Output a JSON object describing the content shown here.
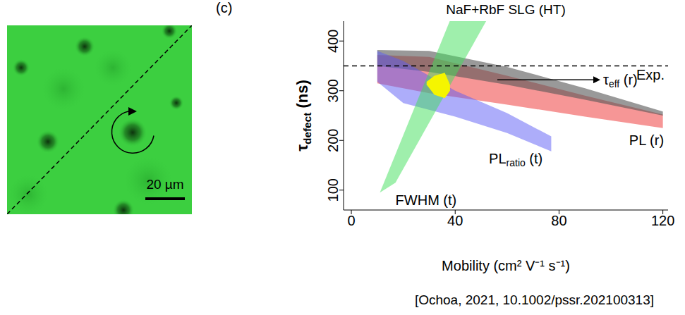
{
  "panel_label": "(c)",
  "citation": "[Ochoa, 2021, 10.1002/pssr.202100313]",
  "image": {
    "scale_bar": "20 µm"
  },
  "chart_data": {
    "type": "area",
    "title": "NaF+RbF SLG (HT)",
    "x_label": "Mobility (cm² V⁻¹ s⁻¹)",
    "y_label": {
      "text": "τ",
      "sub": "defect",
      "suffix": " (ns)"
    },
    "xlim": [
      -3,
      122
    ],
    "ylim": [
      60,
      440
    ],
    "xticks": [
      0,
      40,
      80,
      120
    ],
    "yticks": [
      100,
      200,
      300,
      400
    ],
    "grid": false,
    "reference_lines": [
      {
        "y": 350,
        "label": "Exp.",
        "line_style": "dashed"
      }
    ],
    "series": [
      {
        "label": {
          "text": "PL (r)"
        },
        "color": "#f47c7c",
        "x": [
          10,
          30,
          60,
          90,
          120
        ],
        "lower": [
          315,
          295,
          272,
          248,
          225
        ],
        "upper": [
          372,
          368,
          330,
          290,
          252
        ],
        "label_x": 107,
        "label_y": 200
      },
      {
        "label": {
          "text": "τ",
          "sub": "eff",
          "suffix": " (r)"
        },
        "color": "#555555",
        "x": [
          10,
          30,
          60,
          90,
          120
        ],
        "lower": [
          350,
          338,
          312,
          282,
          250
        ],
        "upper": [
          382,
          380,
          348,
          305,
          258
        ],
        "label_x": 97,
        "label_y": 322,
        "marker": "arrow"
      },
      {
        "label": {
          "text": "PL",
          "sub": "ratio",
          "suffix": " (t)"
        },
        "color": "#5b5bf5",
        "x": [
          10,
          20,
          40,
          60,
          77
        ],
        "lower": [
          318,
          275,
          248,
          215,
          178
        ],
        "upper": [
          380,
          360,
          300,
          255,
          208
        ],
        "label_x": 53,
        "label_y": 163
      },
      {
        "label": {
          "text": "FWHM (t)"
        },
        "color": "#3fe05a",
        "x": [
          11,
          17,
          40,
          56
        ],
        "lower": [
          95,
          115,
          329,
          478
        ],
        "upper": [
          95,
          172,
          467,
          478
        ],
        "label_x": 17,
        "label_y": 80
      },
      {
        "color": "#f5f500",
        "x": [
          29,
          32,
          36,
          38
        ],
        "lower": [
          312,
          292,
          285,
          300
        ],
        "upper": [
          318,
          330,
          336,
          312
        ]
      }
    ]
  }
}
